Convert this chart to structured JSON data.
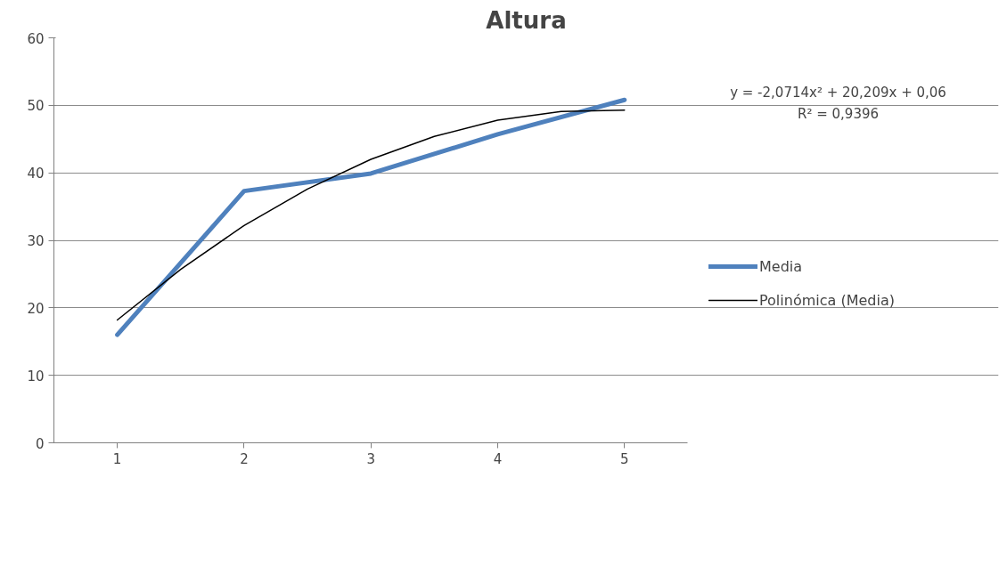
{
  "chart_data": {
    "type": "line",
    "title": "Altura",
    "x": [
      1,
      2,
      3,
      4,
      5
    ],
    "xlim": [
      0.5,
      5.5
    ],
    "xticks": [
      1,
      2,
      3,
      4,
      5
    ],
    "ylim": [
      0,
      60
    ],
    "yticks": [
      0,
      10,
      20,
      30,
      40,
      50,
      60
    ],
    "grid": "y",
    "legend": "right",
    "marker": "none",
    "series": [
      {
        "name": "Media",
        "color": "#4f81bd",
        "values": [
          16,
          37.3,
          39.9,
          45.7,
          50.8
        ]
      },
      {
        "name": "Polinómica (Media)",
        "color": "#000000",
        "type": "line",
        "x": [
          1,
          1.5,
          2,
          2.5,
          3,
          3.5,
          4,
          4.5,
          5
        ],
        "values": [
          18.2,
          25.7,
          32.2,
          37.6,
          42.0,
          45.4,
          47.8,
          49.1,
          49.3
        ]
      }
    ],
    "annotations": [
      "y = -2,0714x² + 20,209x + 0,06",
      "R² = 0,9396"
    ]
  }
}
